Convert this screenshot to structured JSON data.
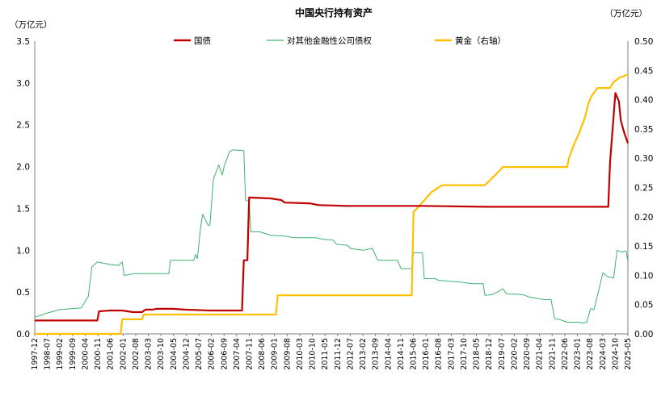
{
  "chart_data": {
    "type": "line",
    "title": "中国央行持有资产",
    "left_unit": "（万亿元）",
    "right_unit": "（万亿元）",
    "ylim_left": [
      0,
      3.5
    ],
    "ylim_right": [
      0,
      0.5
    ],
    "yticks_left": [
      "0.0",
      "0.5",
      "1.0",
      "1.5",
      "2.0",
      "2.5",
      "3.0",
      "3.5"
    ],
    "yticks_right": [
      "0.00",
      "0.05",
      "0.10",
      "0.15",
      "0.20",
      "0.25",
      "0.30",
      "0.35",
      "0.40",
      "0.45",
      "0.50"
    ],
    "x_start": "1997-12",
    "x_end": "2025-08",
    "x_ticks": [
      "1997-12",
      "1998-07",
      "1999-02",
      "1999-09",
      "2000-04",
      "2000-11",
      "2001-06",
      "2002-01",
      "2002-08",
      "2003-03",
      "2003-10",
      "2004-05",
      "2004-12",
      "2005-07",
      "2006-02",
      "2006-09",
      "2007-04",
      "2007-11",
      "2008-06",
      "2009-01",
      "2009-08",
      "2010-03",
      "2010-10",
      "2011-05",
      "2011-12",
      "2012-07",
      "2013-02",
      "2013-09",
      "2014-04",
      "2014-11",
      "2015-06",
      "2016-01",
      "2016-08",
      "2017-03",
      "2017-10",
      "2018-05",
      "2018-12",
      "2019-07",
      "2020-02",
      "2020-09",
      "2021-04",
      "2021-11",
      "2022-06",
      "2023-01",
      "2023-08",
      "2024-03",
      "2024-10",
      "2025-05"
    ],
    "legend_position": "top",
    "grid": false,
    "series": [
      {
        "name": "国债",
        "color": "#C00000",
        "axis": "left",
        "points": [
          [
            "1997-12",
            0.16
          ],
          [
            "2000-11",
            0.16
          ],
          [
            "2000-12",
            0.27
          ],
          [
            "2001-06",
            0.28
          ],
          [
            "2002-01",
            0.28
          ],
          [
            "2002-07",
            0.26
          ],
          [
            "2002-12",
            0.26
          ],
          [
            "2003-02",
            0.29
          ],
          [
            "2003-06",
            0.29
          ],
          [
            "2003-08",
            0.3
          ],
          [
            "2004-05",
            0.3
          ],
          [
            "2004-12",
            0.29
          ],
          [
            "2006-02",
            0.28
          ],
          [
            "2007-08",
            0.28
          ],
          [
            "2007-09",
            0.88
          ],
          [
            "2007-11",
            0.88
          ],
          [
            "2007-12",
            1.63
          ],
          [
            "2008-12",
            1.62
          ],
          [
            "2009-06",
            1.6
          ],
          [
            "2009-08",
            1.57
          ],
          [
            "2010-10",
            1.56
          ],
          [
            "2011-03",
            1.54
          ],
          [
            "2012-07",
            1.53
          ],
          [
            "2016-01",
            1.53
          ],
          [
            "2018-12",
            1.52
          ],
          [
            "2022-06",
            1.52
          ],
          [
            "2024-09",
            1.52
          ],
          [
            "2024-10",
            2.05
          ],
          [
            "2025-01",
            2.88
          ],
          [
            "2025-03",
            2.78
          ],
          [
            "2025-04",
            2.55
          ],
          [
            "2025-06",
            2.4
          ],
          [
            "2025-08",
            2.28
          ]
        ]
      },
      {
        "name": "对其他金融性公司债权",
        "color": "#3CB371",
        "axis": "left",
        "points": [
          [
            "1997-12",
            0.2
          ],
          [
            "1998-07",
            0.25
          ],
          [
            "1999-02",
            0.29
          ],
          [
            "2000-02",
            0.31
          ],
          [
            "2000-04",
            0.38
          ],
          [
            "2000-06",
            0.45
          ],
          [
            "2000-08",
            0.8
          ],
          [
            "2000-11",
            0.86
          ],
          [
            "2001-06",
            0.83
          ],
          [
            "2001-11",
            0.82
          ],
          [
            "2002-01",
            0.86
          ],
          [
            "2002-02",
            0.7
          ],
          [
            "2002-08",
            0.72
          ],
          [
            "2004-03",
            0.72
          ],
          [
            "2004-04",
            0.88
          ],
          [
            "2005-05",
            0.88
          ],
          [
            "2005-06",
            0.95
          ],
          [
            "2005-07",
            0.9
          ],
          [
            "2005-09",
            1.3
          ],
          [
            "2005-10",
            1.43
          ],
          [
            "2006-01",
            1.3
          ],
          [
            "2006-02",
            1.3
          ],
          [
            "2006-04",
            1.85
          ],
          [
            "2006-07",
            2.02
          ],
          [
            "2006-09",
            1.9
          ],
          [
            "2006-10",
            2.0
          ],
          [
            "2007-01",
            2.18
          ],
          [
            "2007-03",
            2.2
          ],
          [
            "2007-09",
            2.19
          ],
          [
            "2007-10",
            1.6
          ],
          [
            "2007-12",
            1.58
          ],
          [
            "2008-01",
            1.22
          ],
          [
            "2008-06",
            1.22
          ],
          [
            "2008-12",
            1.18
          ],
          [
            "2009-08",
            1.17
          ],
          [
            "2010-01",
            1.15
          ],
          [
            "2011-01",
            1.15
          ],
          [
            "2011-06",
            1.13
          ],
          [
            "2011-11",
            1.12
          ],
          [
            "2012-01",
            1.07
          ],
          [
            "2012-07",
            1.06
          ],
          [
            "2012-09",
            1.02
          ],
          [
            "2013-04",
            1.0
          ],
          [
            "2013-06",
            1.01
          ],
          [
            "2013-09",
            1.02
          ],
          [
            "2013-12",
            0.88
          ],
          [
            "2014-11",
            0.88
          ],
          [
            "2015-01",
            0.78
          ],
          [
            "2015-07",
            0.78
          ],
          [
            "2015-08",
            0.97
          ],
          [
            "2016-01",
            0.97
          ],
          [
            "2016-02",
            0.66
          ],
          [
            "2016-08",
            0.66
          ],
          [
            "2016-10",
            0.64
          ],
          [
            "2017-10",
            0.62
          ],
          [
            "2018-05",
            0.6
          ],
          [
            "2018-11",
            0.6
          ],
          [
            "2018-12",
            0.46
          ],
          [
            "2019-04",
            0.47
          ],
          [
            "2019-07",
            0.5
          ],
          [
            "2019-10",
            0.54
          ],
          [
            "2019-12",
            0.48
          ],
          [
            "2020-09",
            0.47
          ],
          [
            "2021-01",
            0.44
          ],
          [
            "2021-04",
            0.43
          ],
          [
            "2021-09",
            0.41
          ],
          [
            "2022-01",
            0.41
          ],
          [
            "2022-03",
            0.18
          ],
          [
            "2022-06",
            0.17
          ],
          [
            "2022-10",
            0.14
          ],
          [
            "2023-04",
            0.14
          ],
          [
            "2023-07",
            0.13
          ],
          [
            "2023-09",
            0.14
          ],
          [
            "2023-11",
            0.3
          ],
          [
            "2024-01",
            0.29
          ],
          [
            "2024-04",
            0.55
          ],
          [
            "2024-06",
            0.73
          ],
          [
            "2024-09",
            0.68
          ],
          [
            "2024-12",
            0.67
          ],
          [
            "2025-02",
            1.0
          ],
          [
            "2025-04",
            0.98
          ],
          [
            "2025-07",
            0.99
          ],
          [
            "2025-08",
            0.87
          ]
        ]
      },
      {
        "name": "黄金（右轴）",
        "color": "#FFC000",
        "axis": "right",
        "points": [
          [
            "1997-12",
            0.0
          ],
          [
            "2001-12",
            0.0
          ],
          [
            "2002-01",
            0.025
          ],
          [
            "2002-12",
            0.025
          ],
          [
            "2003-01",
            0.033
          ],
          [
            "2009-03",
            0.033
          ],
          [
            "2009-04",
            0.066
          ],
          [
            "2015-07",
            0.066
          ],
          [
            "2015-08",
            0.208
          ],
          [
            "2016-02",
            0.228
          ],
          [
            "2016-06",
            0.242
          ],
          [
            "2016-12",
            0.254
          ],
          [
            "2017-03",
            0.254
          ],
          [
            "2018-12",
            0.254
          ],
          [
            "2019-07",
            0.275
          ],
          [
            "2019-10",
            0.285
          ],
          [
            "2022-10",
            0.285
          ],
          [
            "2022-11",
            0.3
          ],
          [
            "2023-02",
            0.325
          ],
          [
            "2023-05",
            0.345
          ],
          [
            "2023-08",
            0.37
          ],
          [
            "2023-10",
            0.395
          ],
          [
            "2023-12",
            0.408
          ],
          [
            "2024-03",
            0.42
          ],
          [
            "2024-10",
            0.42
          ],
          [
            "2024-12",
            0.43
          ],
          [
            "2025-03",
            0.437
          ],
          [
            "2025-08",
            0.443
          ]
        ]
      }
    ]
  }
}
